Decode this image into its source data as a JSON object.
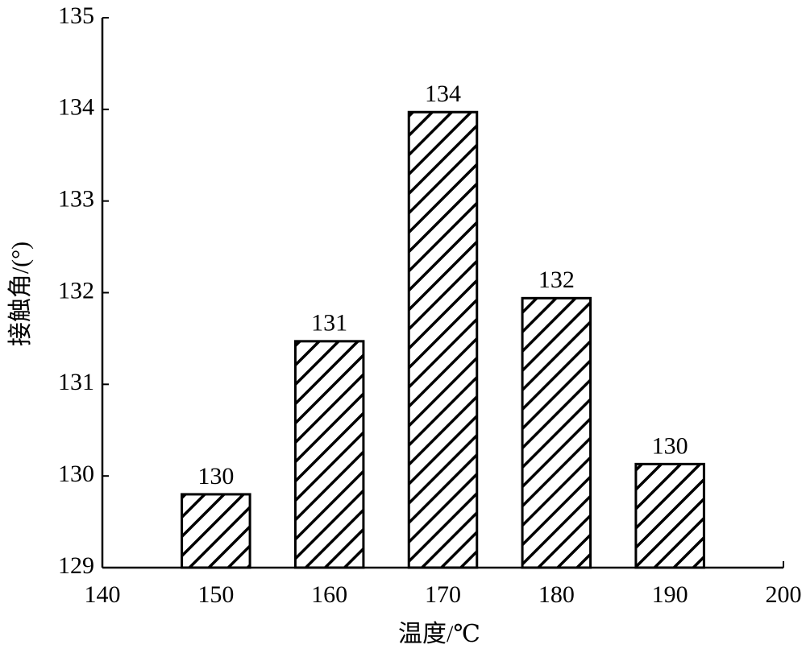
{
  "chart_data": {
    "type": "bar",
    "x": [
      150,
      160,
      170,
      180,
      190
    ],
    "values": [
      129.8,
      131.47,
      133.97,
      131.94,
      130.13
    ],
    "value_labels": [
      "130",
      "131",
      "134",
      "132",
      "130"
    ],
    "xlim": [
      140,
      200
    ],
    "xticks": [
      140,
      150,
      160,
      170,
      180,
      190,
      200
    ],
    "ylim": [
      129,
      135
    ],
    "yticks": [
      129,
      130,
      131,
      132,
      133,
      134,
      135
    ],
    "xlabel": "温度/℃",
    "ylabel": "接触角/(°)",
    "color": "#000000",
    "grid": false
  }
}
